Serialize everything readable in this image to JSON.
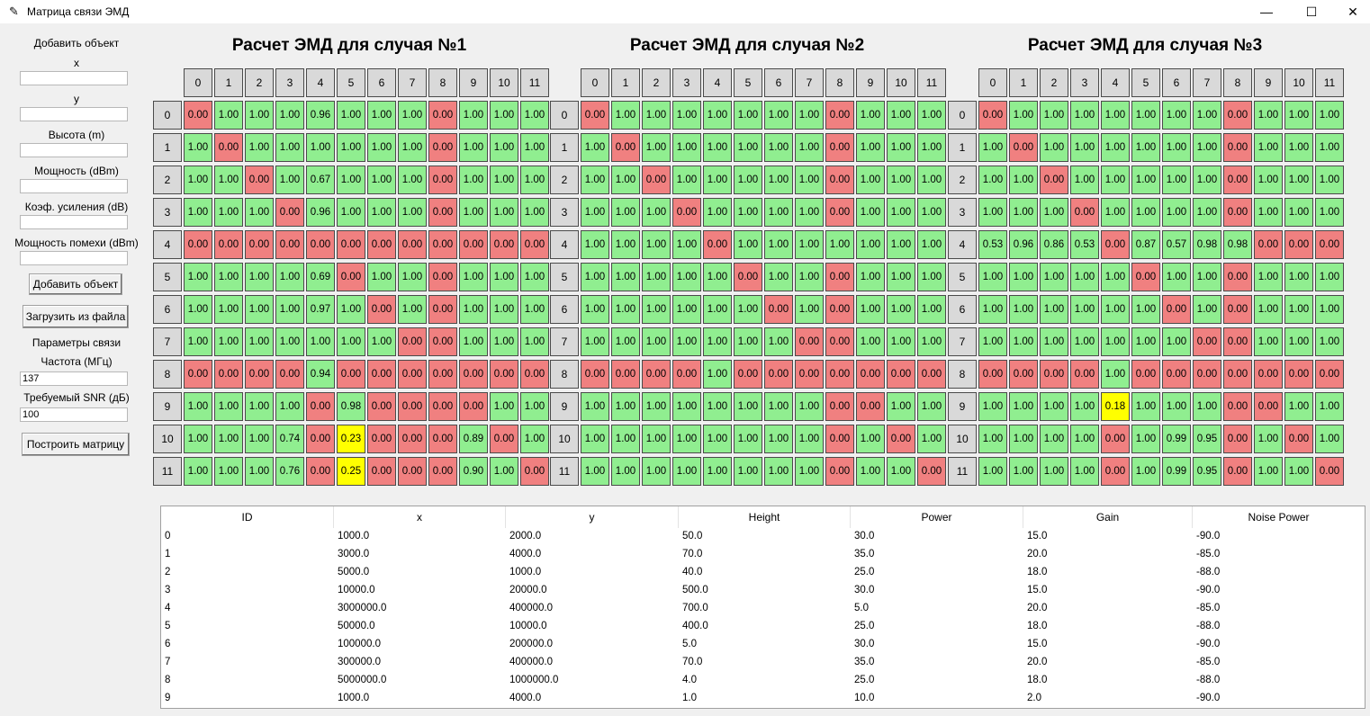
{
  "window": {
    "title": "Матрица связи ЭМД",
    "app_icon": "feather-icon",
    "controls": [
      "—",
      "☐",
      "✕"
    ]
  },
  "sidebar": {
    "add_object_label": "Добавить объект",
    "x_label": "x",
    "y_label": "y",
    "height_label": "Высота (m)",
    "power_label": "Мощность (dBm)",
    "gain_label": "Коэф. усиления (dB)",
    "noise_label": "Мощность помехи (dBm)",
    "x_value": "",
    "y_value": "",
    "height_value": "",
    "power_value": "",
    "gain_value": "",
    "noise_value": "",
    "add_button": "Добавить объект",
    "load_button": "Загрузить из файла",
    "link_params_label": "Параметры связи",
    "freq_label": "Частота (МГц)",
    "freq_value": "137",
    "snr_label": "Требуемый SNR (дБ)",
    "snr_value": "100",
    "build_button": "Построить матрицу"
  },
  "cases": [
    {
      "title": "Расчет ЭМД для случая №1",
      "matrix": [
        [
          "0.00",
          "1.00",
          "1.00",
          "1.00",
          "0.96",
          "1.00",
          "1.00",
          "1.00",
          "0.00",
          "1.00",
          "1.00",
          "1.00"
        ],
        [
          "1.00",
          "0.00",
          "1.00",
          "1.00",
          "1.00",
          "1.00",
          "1.00",
          "1.00",
          "0.00",
          "1.00",
          "1.00",
          "1.00"
        ],
        [
          "1.00",
          "1.00",
          "0.00",
          "1.00",
          "0.67",
          "1.00",
          "1.00",
          "1.00",
          "0.00",
          "1.00",
          "1.00",
          "1.00"
        ],
        [
          "1.00",
          "1.00",
          "1.00",
          "0.00",
          "0.96",
          "1.00",
          "1.00",
          "1.00",
          "0.00",
          "1.00",
          "1.00",
          "1.00"
        ],
        [
          "0.00",
          "0.00",
          "0.00",
          "0.00",
          "0.00",
          "0.00",
          "0.00",
          "0.00",
          "0.00",
          "0.00",
          "0.00",
          "0.00"
        ],
        [
          "1.00",
          "1.00",
          "1.00",
          "1.00",
          "0.69",
          "0.00",
          "1.00",
          "1.00",
          "0.00",
          "1.00",
          "1.00",
          "1.00"
        ],
        [
          "1.00",
          "1.00",
          "1.00",
          "1.00",
          "0.97",
          "1.00",
          "0.00",
          "1.00",
          "0.00",
          "1.00",
          "1.00",
          "1.00"
        ],
        [
          "1.00",
          "1.00",
          "1.00",
          "1.00",
          "1.00",
          "1.00",
          "1.00",
          "0.00",
          "0.00",
          "1.00",
          "1.00",
          "1.00"
        ],
        [
          "0.00",
          "0.00",
          "0.00",
          "0.00",
          "0.94",
          "0.00",
          "0.00",
          "0.00",
          "0.00",
          "0.00",
          "0.00",
          "0.00"
        ],
        [
          "1.00",
          "1.00",
          "1.00",
          "1.00",
          "0.00",
          "0.98",
          "0.00",
          "0.00",
          "0.00",
          "0.00",
          "1.00",
          "1.00"
        ],
        [
          "1.00",
          "1.00",
          "1.00",
          "0.74",
          "0.00",
          "0.23",
          "0.00",
          "0.00",
          "0.00",
          "0.89",
          "0.00",
          "1.00"
        ],
        [
          "1.00",
          "1.00",
          "1.00",
          "0.76",
          "0.00",
          "0.25",
          "0.00",
          "0.00",
          "0.00",
          "0.90",
          "1.00",
          "0.00"
        ]
      ]
    },
    {
      "title": "Расчет ЭМД для случая №2",
      "matrix": [
        [
          "0.00",
          "1.00",
          "1.00",
          "1.00",
          "1.00",
          "1.00",
          "1.00",
          "1.00",
          "0.00",
          "1.00",
          "1.00",
          "1.00"
        ],
        [
          "1.00",
          "0.00",
          "1.00",
          "1.00",
          "1.00",
          "1.00",
          "1.00",
          "1.00",
          "0.00",
          "1.00",
          "1.00",
          "1.00"
        ],
        [
          "1.00",
          "1.00",
          "0.00",
          "1.00",
          "1.00",
          "1.00",
          "1.00",
          "1.00",
          "0.00",
          "1.00",
          "1.00",
          "1.00"
        ],
        [
          "1.00",
          "1.00",
          "1.00",
          "0.00",
          "1.00",
          "1.00",
          "1.00",
          "1.00",
          "0.00",
          "1.00",
          "1.00",
          "1.00"
        ],
        [
          "1.00",
          "1.00",
          "1.00",
          "1.00",
          "0.00",
          "1.00",
          "1.00",
          "1.00",
          "1.00",
          "1.00",
          "1.00",
          "1.00"
        ],
        [
          "1.00",
          "1.00",
          "1.00",
          "1.00",
          "1.00",
          "0.00",
          "1.00",
          "1.00",
          "0.00",
          "1.00",
          "1.00",
          "1.00"
        ],
        [
          "1.00",
          "1.00",
          "1.00",
          "1.00",
          "1.00",
          "1.00",
          "0.00",
          "1.00",
          "0.00",
          "1.00",
          "1.00",
          "1.00"
        ],
        [
          "1.00",
          "1.00",
          "1.00",
          "1.00",
          "1.00",
          "1.00",
          "1.00",
          "0.00",
          "0.00",
          "1.00",
          "1.00",
          "1.00"
        ],
        [
          "0.00",
          "0.00",
          "0.00",
          "0.00",
          "1.00",
          "0.00",
          "0.00",
          "0.00",
          "0.00",
          "0.00",
          "0.00",
          "0.00"
        ],
        [
          "1.00",
          "1.00",
          "1.00",
          "1.00",
          "1.00",
          "1.00",
          "1.00",
          "1.00",
          "0.00",
          "0.00",
          "1.00",
          "1.00"
        ],
        [
          "1.00",
          "1.00",
          "1.00",
          "1.00",
          "1.00",
          "1.00",
          "1.00",
          "1.00",
          "0.00",
          "1.00",
          "0.00",
          "1.00"
        ],
        [
          "1.00",
          "1.00",
          "1.00",
          "1.00",
          "1.00",
          "1.00",
          "1.00",
          "1.00",
          "0.00",
          "1.00",
          "1.00",
          "0.00"
        ]
      ]
    },
    {
      "title": "Расчет ЭМД для случая №3",
      "matrix": [
        [
          "0.00",
          "1.00",
          "1.00",
          "1.00",
          "1.00",
          "1.00",
          "1.00",
          "1.00",
          "0.00",
          "1.00",
          "1.00",
          "1.00"
        ],
        [
          "1.00",
          "0.00",
          "1.00",
          "1.00",
          "1.00",
          "1.00",
          "1.00",
          "1.00",
          "0.00",
          "1.00",
          "1.00",
          "1.00"
        ],
        [
          "1.00",
          "1.00",
          "0.00",
          "1.00",
          "1.00",
          "1.00",
          "1.00",
          "1.00",
          "0.00",
          "1.00",
          "1.00",
          "1.00"
        ],
        [
          "1.00",
          "1.00",
          "1.00",
          "0.00",
          "1.00",
          "1.00",
          "1.00",
          "1.00",
          "0.00",
          "1.00",
          "1.00",
          "1.00"
        ],
        [
          "0.53",
          "0.96",
          "0.86",
          "0.53",
          "0.00",
          "0.87",
          "0.57",
          "0.98",
          "0.98",
          "0.00",
          "0.00",
          "0.00"
        ],
        [
          "1.00",
          "1.00",
          "1.00",
          "1.00",
          "1.00",
          "0.00",
          "1.00",
          "1.00",
          "0.00",
          "1.00",
          "1.00",
          "1.00"
        ],
        [
          "1.00",
          "1.00",
          "1.00",
          "1.00",
          "1.00",
          "1.00",
          "0.00",
          "1.00",
          "0.00",
          "1.00",
          "1.00",
          "1.00"
        ],
        [
          "1.00",
          "1.00",
          "1.00",
          "1.00",
          "1.00",
          "1.00",
          "1.00",
          "0.00",
          "0.00",
          "1.00",
          "1.00",
          "1.00"
        ],
        [
          "0.00",
          "0.00",
          "0.00",
          "0.00",
          "1.00",
          "0.00",
          "0.00",
          "0.00",
          "0.00",
          "0.00",
          "0.00",
          "0.00"
        ],
        [
          "1.00",
          "1.00",
          "1.00",
          "1.00",
          "0.18",
          "1.00",
          "1.00",
          "1.00",
          "0.00",
          "0.00",
          "1.00",
          "1.00"
        ],
        [
          "1.00",
          "1.00",
          "1.00",
          "1.00",
          "0.00",
          "1.00",
          "0.99",
          "0.95",
          "0.00",
          "1.00",
          "0.00",
          "1.00"
        ],
        [
          "1.00",
          "1.00",
          "1.00",
          "1.00",
          "0.00",
          "1.00",
          "0.99",
          "0.95",
          "0.00",
          "1.00",
          "1.00",
          "0.00"
        ]
      ]
    }
  ],
  "table": {
    "columns": [
      "ID",
      "x",
      "y",
      "Height",
      "Power",
      "Gain",
      "Noise Power"
    ],
    "rows": [
      [
        "0",
        "1000.0",
        "2000.0",
        "50.0",
        "30.0",
        "15.0",
        "-90.0"
      ],
      [
        "1",
        "3000.0",
        "4000.0",
        "70.0",
        "35.0",
        "20.0",
        "-85.0"
      ],
      [
        "2",
        "5000.0",
        "1000.0",
        "40.0",
        "25.0",
        "18.0",
        "-88.0"
      ],
      [
        "3",
        "10000.0",
        "20000.0",
        "500.0",
        "30.0",
        "15.0",
        "-90.0"
      ],
      [
        "4",
        "3000000.0",
        "400000.0",
        "700.0",
        "5.0",
        "20.0",
        "-85.0"
      ],
      [
        "5",
        "50000.0",
        "10000.0",
        "400.0",
        "25.0",
        "18.0",
        "-88.0"
      ],
      [
        "6",
        "100000.0",
        "200000.0",
        "5.0",
        "30.0",
        "15.0",
        "-90.0"
      ],
      [
        "7",
        "300000.0",
        "400000.0",
        "70.0",
        "35.0",
        "20.0",
        "-85.0"
      ],
      [
        "8",
        "5000000.0",
        "1000000.0",
        "4.0",
        "25.0",
        "18.0",
        "-88.0"
      ],
      [
        "9",
        "1000.0",
        "4000.0",
        "1.0",
        "10.0",
        "2.0",
        "-90.0"
      ]
    ]
  },
  "colors": {
    "red": "#f08080",
    "green": "#90ee90",
    "yellow": "#ffff00",
    "header": "#d9d9d9"
  }
}
